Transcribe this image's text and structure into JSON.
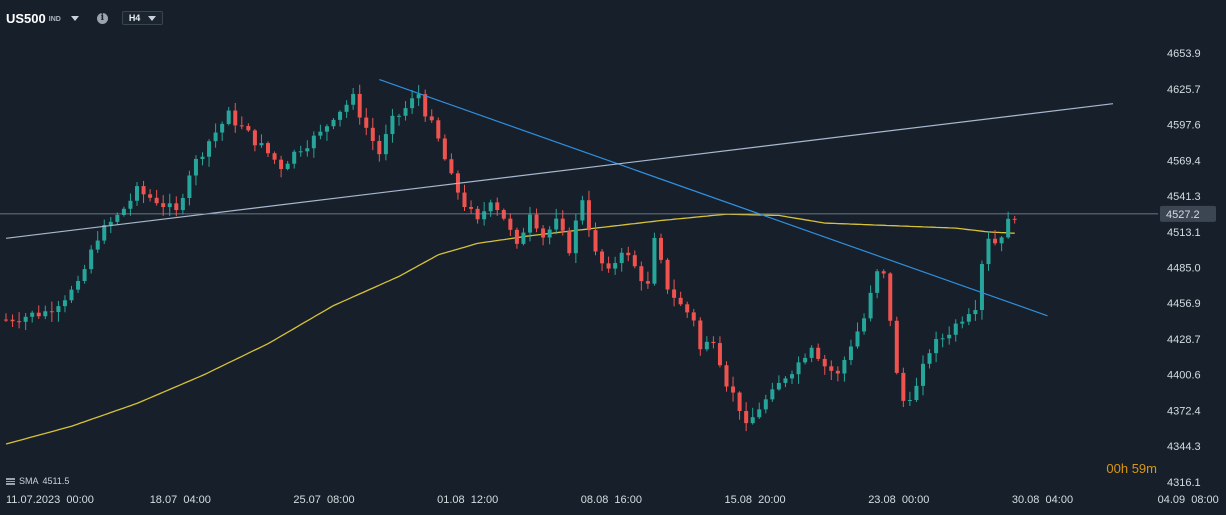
{
  "header": {
    "symbol": "US500",
    "symbol_type": "IND",
    "timeframe": "H4"
  },
  "indicator": {
    "name": "SMA",
    "value": "4511.5"
  },
  "countdown": {
    "hours": "00",
    "h_unit": "h",
    "minutes": "59",
    "m_unit": "m"
  },
  "colors": {
    "background": "#17202a",
    "bull": "#26a69a",
    "bear": "#ef5350",
    "sma": "#d6c13a",
    "trendline_down": "#2f8fe0",
    "trendline_up": "#a8b8d0",
    "price_line": "#8090a0"
  },
  "chart_data": {
    "type": "candlestick",
    "ylim": [
      4316.1,
      4668
    ],
    "y_ticks": [
      "4653.9",
      "4625.7",
      "4597.6",
      "4569.4",
      "4541.3",
      "4513.1",
      "4485.0",
      "4456.9",
      "4428.7",
      "4400.6",
      "4372.4",
      "4344.3",
      "4316.1"
    ],
    "x_ticks": [
      "11.07.2023  00:00",
      "18.07  04:00",
      "25.07  08:00",
      "01.08  12:00",
      "08.08  16:00",
      "15.08  20:00",
      "23.08  00:00",
      "30.08  04:00",
      "04.09  08:00"
    ],
    "current_price": "4527.2",
    "close_path": [
      [
        0,
        4444
      ],
      [
        6,
        4450
      ],
      [
        11,
        4470
      ],
      [
        14,
        4510
      ],
      [
        17,
        4525
      ],
      [
        20,
        4545
      ],
      [
        23,
        4538
      ],
      [
        26,
        4528
      ],
      [
        28,
        4560
      ],
      [
        31,
        4585
      ],
      [
        34,
        4605
      ],
      [
        37,
        4590
      ],
      [
        40,
        4575
      ],
      [
        42,
        4565
      ],
      [
        45,
        4580
      ],
      [
        48,
        4590
      ],
      [
        50,
        4605
      ],
      [
        53,
        4618
      ],
      [
        55,
        4595
      ],
      [
        57,
        4575
      ],
      [
        59,
        4600
      ],
      [
        61,
        4610
      ],
      [
        63,
        4622
      ],
      [
        64,
        4608
      ],
      [
        66,
        4585
      ],
      [
        68,
        4555
      ],
      [
        70,
        4535
      ],
      [
        72,
        4520
      ],
      [
        74,
        4540
      ],
      [
        76,
        4525
      ],
      [
        78,
        4500
      ],
      [
        80,
        4530
      ],
      [
        82,
        4510
      ],
      [
        84,
        4520
      ],
      [
        86,
        4500
      ],
      [
        88,
        4540
      ],
      [
        90,
        4495
      ],
      [
        92,
        4480
      ],
      [
        94,
        4500
      ],
      [
        96,
        4485
      ],
      [
        98,
        4470
      ],
      [
        99,
        4505
      ],
      [
        101,
        4470
      ],
      [
        103,
        4455
      ],
      [
        105,
        4445
      ],
      [
        106,
        4420
      ],
      [
        108,
        4430
      ],
      [
        110,
        4395
      ],
      [
        112,
        4375
      ],
      [
        113,
        4358
      ],
      [
        115,
        4375
      ],
      [
        117,
        4385
      ],
      [
        119,
        4400
      ],
      [
        121,
        4410
      ],
      [
        123,
        4425
      ],
      [
        125,
        4408
      ],
      [
        127,
        4400
      ],
      [
        129,
        4425
      ],
      [
        131,
        4445
      ],
      [
        133,
        4480
      ],
      [
        134,
        4478
      ],
      [
        135,
        4445
      ],
      [
        136,
        4400
      ],
      [
        137,
        4380
      ],
      [
        139,
        4390
      ],
      [
        141,
        4420
      ],
      [
        143,
        4430
      ],
      [
        145,
        4440
      ],
      [
        147,
        4452
      ],
      [
        148,
        4456
      ],
      [
        149,
        4490
      ],
      [
        150,
        4510
      ],
      [
        151,
        4505
      ],
      [
        152,
        4512
      ],
      [
        153,
        4520
      ],
      [
        154,
        4527
      ]
    ],
    "sma_path": [
      [
        0,
        4346
      ],
      [
        10,
        4360
      ],
      [
        20,
        4378
      ],
      [
        30,
        4400
      ],
      [
        40,
        4425
      ],
      [
        50,
        4455
      ],
      [
        60,
        4478
      ],
      [
        66,
        4495
      ],
      [
        72,
        4504
      ],
      [
        80,
        4510
      ],
      [
        90,
        4516
      ],
      [
        100,
        4522
      ],
      [
        110,
        4527
      ],
      [
        118,
        4526
      ],
      [
        125,
        4520
      ],
      [
        135,
        4518
      ],
      [
        145,
        4516
      ],
      [
        150,
        4513
      ],
      [
        154,
        4512
      ]
    ],
    "trendlines": [
      {
        "from": [
          57,
          4633
        ],
        "to": [
          159,
          4447
        ]
      },
      {
        "from": [
          0,
          4508
        ],
        "to": [
          169,
          4614
        ]
      }
    ]
  }
}
